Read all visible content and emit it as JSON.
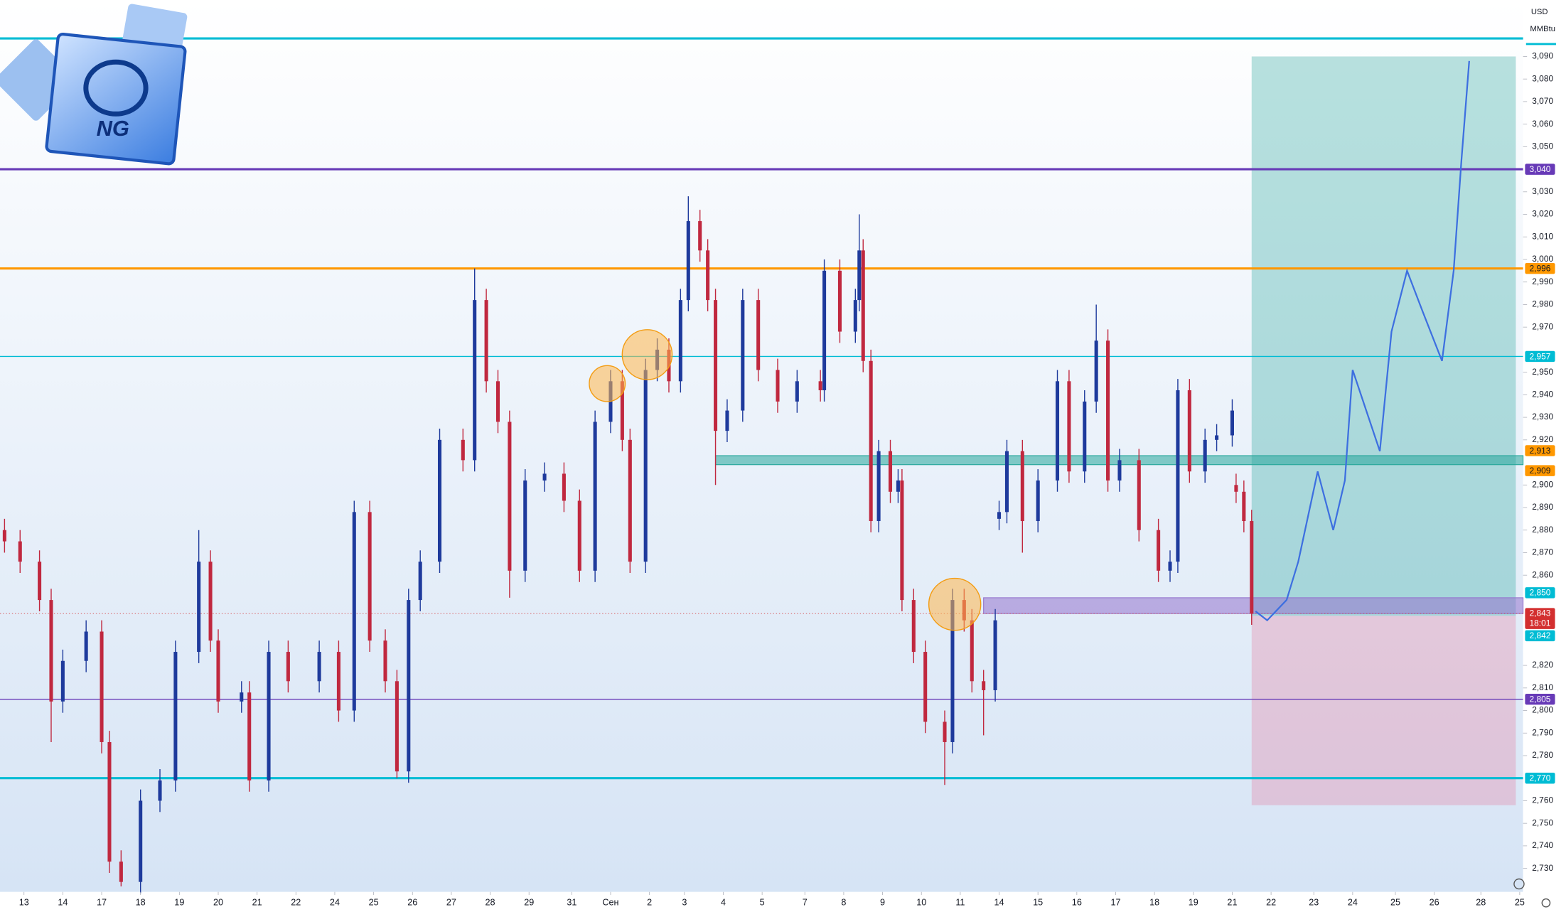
{
  "logo": "NG",
  "currency": "USD",
  "unit": "MMBtu",
  "chart_data": {
    "type": "candlestick",
    "xlim": [
      -0.617,
      38.586
    ],
    "ylim": [
      2.72,
      3.115
    ],
    "xticks": [
      {
        "value": 0,
        "label": "13"
      },
      {
        "value": 1.0,
        "label": "14"
      },
      {
        "value": 2.0,
        "label": "17"
      },
      {
        "value": 3.0,
        "label": "18"
      },
      {
        "value": 4.0,
        "label": "19"
      },
      {
        "value": 5.0,
        "label": "20"
      },
      {
        "value": 6.0,
        "label": "21"
      },
      {
        "value": 7.0,
        "label": "22"
      },
      {
        "value": 8.0,
        "label": "24"
      },
      {
        "value": 9.0,
        "label": "25"
      },
      {
        "value": 10.0,
        "label": "26"
      },
      {
        "value": 11.0,
        "label": "27"
      },
      {
        "value": 12.0,
        "label": "28"
      },
      {
        "value": 13.0,
        "label": "29"
      },
      {
        "value": 14.1,
        "label": "31"
      },
      {
        "value": 15.1,
        "label": "Сен"
      },
      {
        "value": 16.1,
        "label": "2"
      },
      {
        "value": 17.0,
        "label": "3"
      },
      {
        "value": 18.0,
        "label": "4"
      },
      {
        "value": 19.0,
        "label": "5"
      },
      {
        "value": 20.1,
        "label": "7"
      },
      {
        "value": 21.1,
        "label": "8"
      },
      {
        "value": 22.1,
        "label": "9"
      },
      {
        "value": 23.1,
        "label": "10"
      },
      {
        "value": 24.1,
        "label": "11"
      },
      {
        "value": 25.1,
        "label": "14"
      },
      {
        "value": 26.1,
        "label": "15"
      },
      {
        "value": 27.1,
        "label": "16"
      },
      {
        "value": 28.1,
        "label": "17"
      },
      {
        "value": 29.1,
        "label": "18"
      },
      {
        "value": 30.1,
        "label": "19"
      },
      {
        "value": 31.1,
        "label": "21"
      },
      {
        "value": 32.1,
        "label": "22"
      },
      {
        "value": 33.2,
        "label": "23"
      },
      {
        "value": 34.2,
        "label": "24"
      },
      {
        "value": 35.3,
        "label": "25"
      },
      {
        "value": 36.3,
        "label": "26"
      },
      {
        "value": 37.5,
        "label": "28"
      },
      {
        "value": 38.5,
        "label": "25"
      }
    ],
    "yticks": [
      {
        "value": 3.09,
        "label": "3,090"
      },
      {
        "value": 3.08,
        "label": "3,080"
      },
      {
        "value": 3.07,
        "label": "3,070"
      },
      {
        "value": 3.06,
        "label": "3,060"
      },
      {
        "value": 3.05,
        "label": "3,050"
      },
      {
        "value": 3.03,
        "label": "3,030"
      },
      {
        "value": 3.02,
        "label": "3,020"
      },
      {
        "value": 3.01,
        "label": "3,010"
      },
      {
        "value": 3.0,
        "label": "3,000"
      },
      {
        "value": 2.99,
        "label": "2,990"
      },
      {
        "value": 2.98,
        "label": "2,980"
      },
      {
        "value": 2.97,
        "label": "2,970"
      },
      {
        "value": 2.95,
        "label": "2,950"
      },
      {
        "value": 2.94,
        "label": "2,940"
      },
      {
        "value": 2.93,
        "label": "2,930"
      },
      {
        "value": 2.92,
        "label": "2,920"
      },
      {
        "value": 2.9,
        "label": "2,900"
      },
      {
        "value": 2.89,
        "label": "2,890"
      },
      {
        "value": 2.88,
        "label": "2,880"
      },
      {
        "value": 2.87,
        "label": "2,870"
      },
      {
        "value": 2.86,
        "label": "2,860"
      },
      {
        "value": 2.82,
        "label": "2,820"
      },
      {
        "value": 2.81,
        "label": "2,810"
      },
      {
        "value": 2.8,
        "label": "2,800"
      },
      {
        "value": 2.79,
        "label": "2,790"
      },
      {
        "value": 2.78,
        "label": "2,780"
      },
      {
        "value": 2.76,
        "label": "2,760"
      },
      {
        "value": 2.75,
        "label": "2,750"
      },
      {
        "value": 2.74,
        "label": "2,740"
      },
      {
        "value": 2.73,
        "label": "2,730"
      }
    ],
    "up_color": "#1e3a9c",
    "down_color": "#c0283f",
    "x": [
      -0.5,
      -0.1,
      0.4,
      0.7,
      1.0,
      1.6,
      2.0,
      2.2,
      2.5,
      3.0,
      3.5,
      3.9,
      4.5,
      4.8,
      5.0,
      5.6,
      5.8,
      6.3,
      6.8,
      7.6,
      8.1,
      8.5,
      8.9,
      9.3,
      9.6,
      9.9,
      10.2,
      10.7,
      11.3,
      11.6,
      11.9,
      12.2,
      12.5,
      12.9,
      13.4,
      13.9,
      14.3,
      14.7,
      15.1,
      15.4,
      15.6,
      16.0,
      16.3,
      16.6,
      16.9,
      17.1,
      17.4,
      17.6,
      17.8,
      18.1,
      18.5,
      18.9,
      19.4,
      19.9,
      20.5,
      20.6,
      21.0,
      21.4,
      21.5,
      21.6,
      21.8,
      22.0,
      22.3,
      22.5,
      22.6,
      22.9,
      23.2,
      23.7,
      23.9,
      24.2,
      24.4,
      24.7,
      25.0,
      25.1,
      25.3,
      25.7,
      26.1,
      26.6,
      26.9,
      27.3,
      27.6,
      27.9,
      28.2,
      28.7,
      29.2,
      29.5,
      29.7,
      30.0,
      30.4,
      30.7,
      31.1,
      31.2,
      31.4,
      31.6
    ],
    "open": [
      2.88,
      2.875,
      2.866,
      2.849,
      2.804,
      2.822,
      2.835,
      2.786,
      2.733,
      2.724,
      2.76,
      2.769,
      2.826,
      2.866,
      2.831,
      2.804,
      2.808,
      2.769,
      2.826,
      2.813,
      2.826,
      2.8,
      2.888,
      2.831,
      2.813,
      2.773,
      2.849,
      2.866,
      2.92,
      2.911,
      2.982,
      2.946,
      2.928,
      2.862,
      2.902,
      2.905,
      2.893,
      2.862,
      2.928,
      2.946,
      2.92,
      2.866,
      2.951,
      2.96,
      2.946,
      2.982,
      3.017,
      3.004,
      2.982,
      2.924,
      2.933,
      2.982,
      2.951,
      2.937,
      2.946,
      2.942,
      2.995,
      2.968,
      2.982,
      3.004,
      2.955,
      2.884,
      2.915,
      2.897,
      2.902,
      2.849,
      2.826,
      2.795,
      2.786,
      2.849,
      2.84,
      2.813,
      2.809,
      2.885,
      2.888,
      2.915,
      2.884,
      2.902,
      2.946,
      2.906,
      2.937,
      2.964,
      2.902,
      2.911,
      2.88,
      2.862,
      2.866,
      2.942,
      2.906,
      2.92,
      2.922,
      2.9,
      2.897,
      2.884
    ],
    "high": [
      2.885,
      2.88,
      2.871,
      2.854,
      2.827,
      2.84,
      2.84,
      2.791,
      2.738,
      2.765,
      2.774,
      2.831,
      2.88,
      2.871,
      2.836,
      2.813,
      2.813,
      2.831,
      2.831,
      2.831,
      2.831,
      2.893,
      2.893,
      2.836,
      2.818,
      2.854,
      2.871,
      2.925,
      2.925,
      2.996,
      2.987,
      2.951,
      2.933,
      2.907,
      2.91,
      2.91,
      2.898,
      2.933,
      2.951,
      2.951,
      2.925,
      2.956,
      2.965,
      2.965,
      2.987,
      3.028,
      3.022,
      3.009,
      2.987,
      2.938,
      2.987,
      2.987,
      2.956,
      2.951,
      2.951,
      3.0,
      3.0,
      2.987,
      3.02,
      3.009,
      2.96,
      2.92,
      2.92,
      2.907,
      2.907,
      2.854,
      2.831,
      2.8,
      2.854,
      2.854,
      2.845,
      2.818,
      2.845,
      2.893,
      2.92,
      2.92,
      2.907,
      2.951,
      2.951,
      2.942,
      2.98,
      2.969,
      2.916,
      2.916,
      2.885,
      2.871,
      2.947,
      2.947,
      2.925,
      2.927,
      2.938,
      2.905,
      2.902,
      2.889
    ],
    "low": [
      2.87,
      2.861,
      2.844,
      2.786,
      2.799,
      2.817,
      2.781,
      2.728,
      2.722,
      2.719,
      2.755,
      2.764,
      2.821,
      2.826,
      2.799,
      2.799,
      2.764,
      2.764,
      2.808,
      2.808,
      2.795,
      2.795,
      2.826,
      2.808,
      2.77,
      2.768,
      2.844,
      2.861,
      2.906,
      2.906,
      2.941,
      2.923,
      2.85,
      2.857,
      2.897,
      2.888,
      2.857,
      2.857,
      2.923,
      2.915,
      2.861,
      2.861,
      2.946,
      2.941,
      2.941,
      2.977,
      2.999,
      2.977,
      2.9,
      2.919,
      2.928,
      2.946,
      2.932,
      2.932,
      2.937,
      2.937,
      2.963,
      2.963,
      2.977,
      2.95,
      2.879,
      2.879,
      2.892,
      2.892,
      2.844,
      2.821,
      2.79,
      2.767,
      2.781,
      2.835,
      2.808,
      2.789,
      2.804,
      2.88,
      2.883,
      2.87,
      2.879,
      2.897,
      2.901,
      2.901,
      2.932,
      2.897,
      2.897,
      2.875,
      2.857,
      2.857,
      2.861,
      2.901,
      2.901,
      2.915,
      2.917,
      2.892,
      2.879,
      2.838
    ],
    "close": [
      2.875,
      2.866,
      2.849,
      2.804,
      2.822,
      2.835,
      2.786,
      2.733,
      2.724,
      2.76,
      2.769,
      2.826,
      2.866,
      2.831,
      2.804,
      2.808,
      2.769,
      2.826,
      2.813,
      2.826,
      2.8,
      2.888,
      2.831,
      2.813,
      2.773,
      2.849,
      2.866,
      2.92,
      2.911,
      2.982,
      2.946,
      2.928,
      2.862,
      2.902,
      2.905,
      2.893,
      2.862,
      2.928,
      2.946,
      2.92,
      2.866,
      2.951,
      2.96,
      2.946,
      2.982,
      3.017,
      3.004,
      2.982,
      2.924,
      2.933,
      2.982,
      2.951,
      2.937,
      2.946,
      2.942,
      2.995,
      2.968,
      2.982,
      3.004,
      2.955,
      2.884,
      2.915,
      2.897,
      2.902,
      2.849,
      2.826,
      2.795,
      2.786,
      2.849,
      2.84,
      2.813,
      2.809,
      2.84,
      2.888,
      2.915,
      2.884,
      2.902,
      2.946,
      2.906,
      2.937,
      2.964,
      2.902,
      2.911,
      2.88,
      2.862,
      2.866,
      2.942,
      2.906,
      2.92,
      2.922,
      2.933,
      2.897,
      2.884,
      2.843
    ],
    "projection": {
      "color": "#3d6fe0",
      "x": [
        31.7,
        32.0,
        32.5,
        32.8,
        33.3,
        33.7,
        34.0,
        34.2,
        34.9,
        35.2,
        35.6,
        36.0,
        36.5,
        36.8,
        37.0,
        37.2
      ],
      "values": [
        2.844,
        2.84,
        2.849,
        2.866,
        2.906,
        2.88,
        2.902,
        2.951,
        2.915,
        2.968,
        2.995,
        2.977,
        2.955,
        2.995,
        3.044,
        3.088
      ]
    },
    "levels": [
      {
        "value": 3.098,
        "color": "#00bcd4",
        "style": "thick"
      },
      {
        "value": 3.04,
        "label": "3,040",
        "color": "#673ab7",
        "style": "thick"
      },
      {
        "value": 2.996,
        "label": "2,996",
        "color": "#ff9800",
        "style": "thick"
      },
      {
        "value": 2.957,
        "label": "2,957",
        "color": "#00bcd4",
        "style": "thin"
      },
      {
        "value": 2.805,
        "label": "2,805",
        "color": "#673ab7",
        "style": "thin"
      },
      {
        "value": 2.77,
        "label": "2,770",
        "color": "#00bcd4",
        "style": "thick"
      }
    ],
    "zones": [
      {
        "low": 2.909,
        "high": 2.913,
        "x_start": 17.8,
        "low_label": "2,909",
        "high_label": "2,913",
        "color": "#26a69a",
        "label_color": "#ff9800"
      },
      {
        "low": 2.843,
        "high": 2.85,
        "x_start": 24.7,
        "high_label": "2,850",
        "color": "#9575cd",
        "label_color": "#00bcd4"
      }
    ],
    "position": {
      "x_start": 31.6,
      "x_end": 38.4,
      "entry": 2.842,
      "entry_label": "2,842",
      "target": 3.09,
      "stop": 2.758,
      "target_color": "#26a69a",
      "stop_color": "#e57399",
      "label_color": "#00bcd4"
    },
    "last_price": {
      "value": 2.843,
      "label": "2,843",
      "countdown": "18:01",
      "color": "#d32f2f"
    }
  }
}
